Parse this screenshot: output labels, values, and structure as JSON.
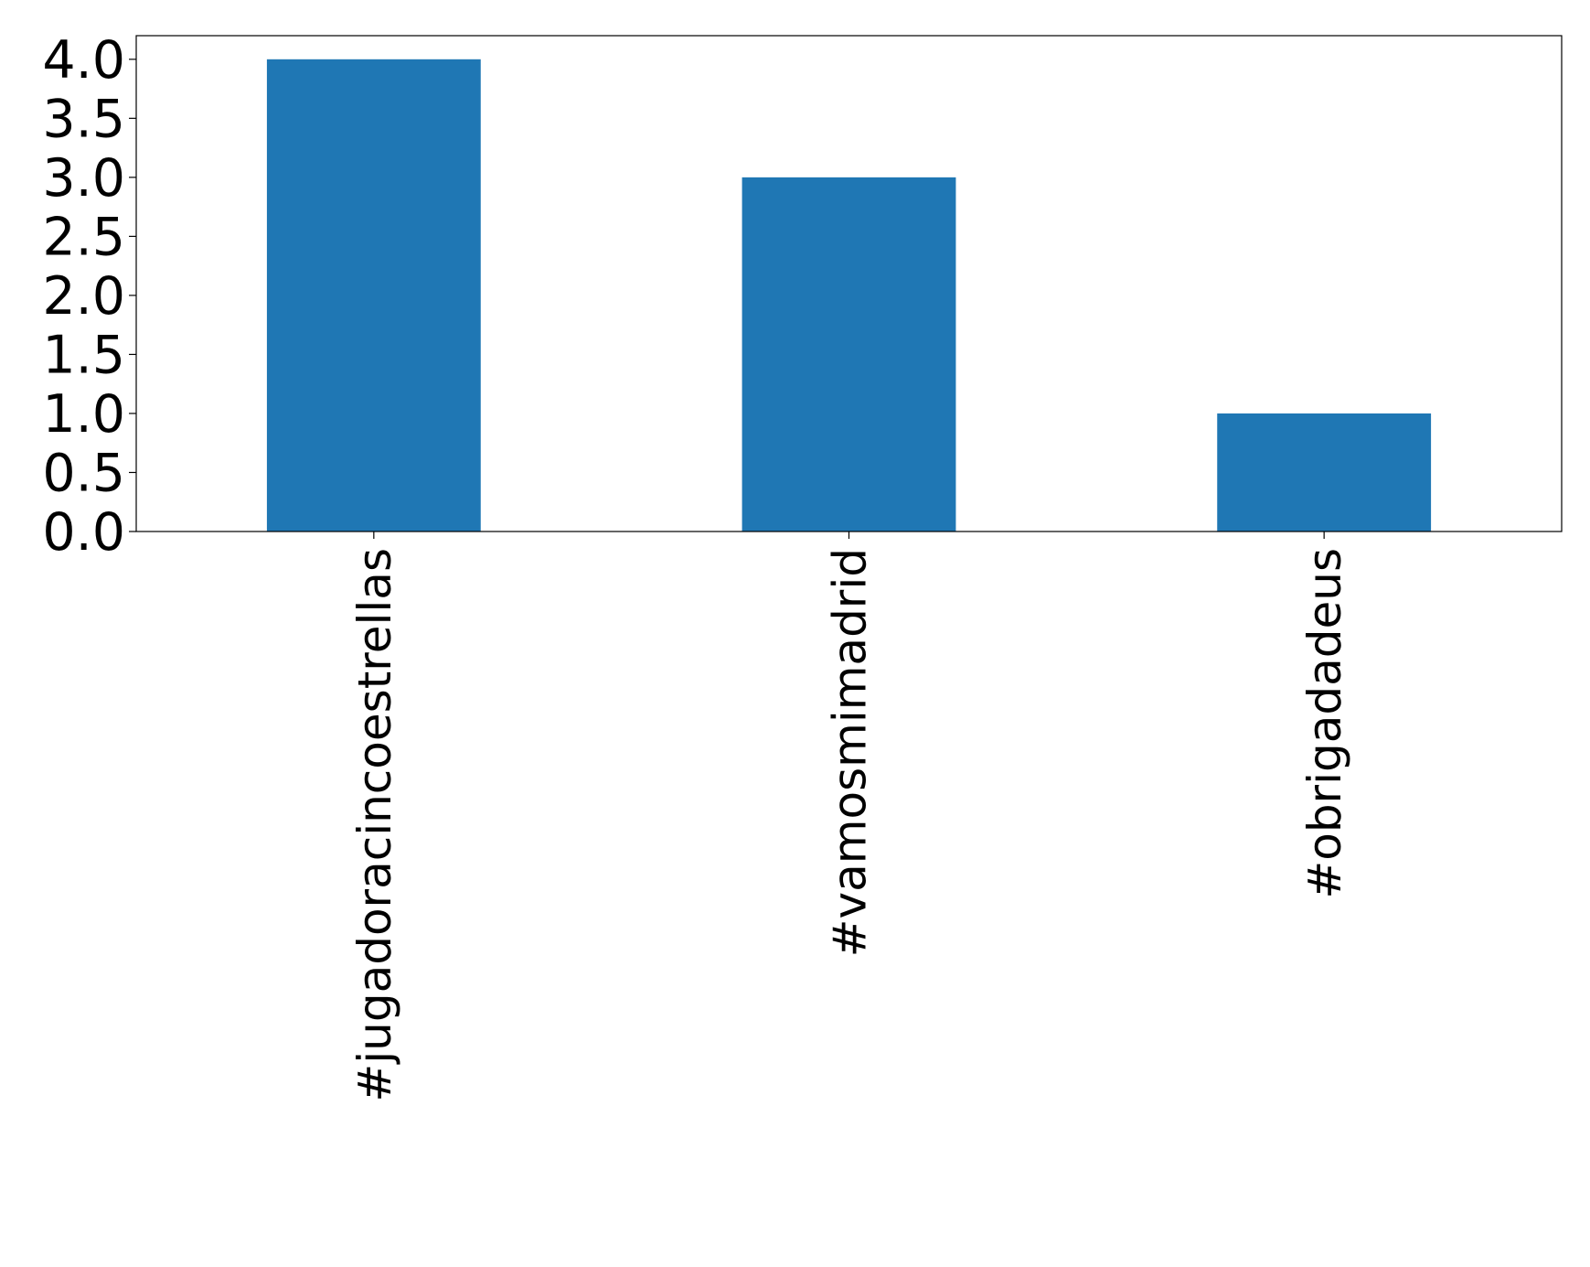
{
  "chart_data": {
    "type": "bar",
    "categories": [
      "#jugadoracincoestrellas",
      "#vamosmimadrid",
      "#obrigadadeus"
    ],
    "values": [
      4,
      3,
      1
    ],
    "color": "#1f77b4",
    "ylim": [
      0,
      4.2
    ],
    "yticks": [
      {
        "value": 0,
        "label": "0.0"
      },
      0.5,
      {
        "value": 1,
        "label": "1.0"
      },
      1.5,
      {
        "value": 2,
        "label": "2.0"
      },
      2.5,
      {
        "value": 3,
        "label": "3.0"
      },
      3.5,
      {
        "value": 4,
        "label": "4.0"
      }
    ],
    "grid": false
  }
}
